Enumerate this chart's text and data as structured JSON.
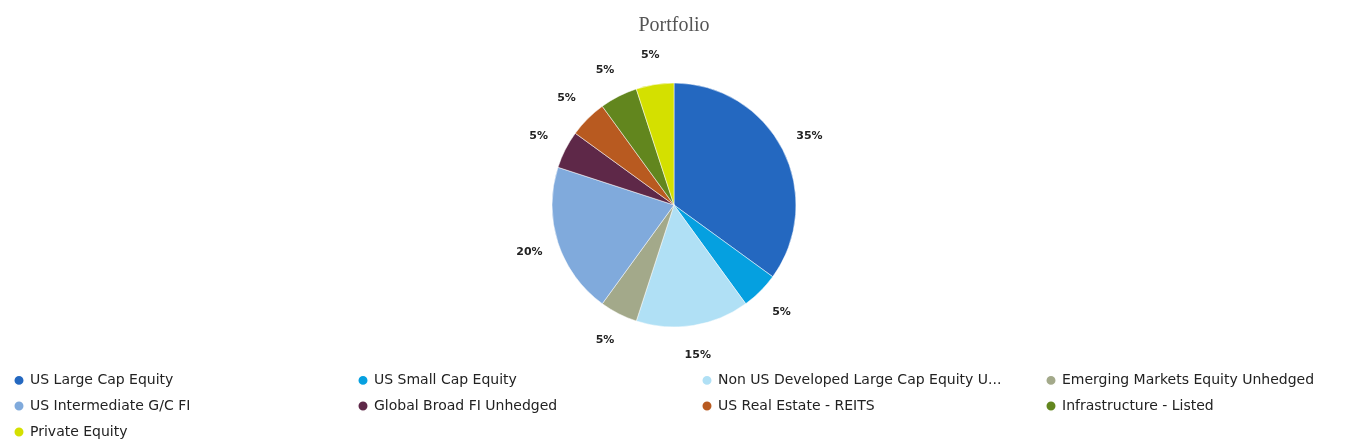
{
  "chart_data": {
    "type": "pie",
    "title": "Portfolio",
    "categories": [
      "US Large Cap Equity",
      "US Small Cap Equity",
      "Non US Developed Large Cap Equity U...",
      "Emerging Markets Equity Unhedged",
      "US Intermediate G/C FI",
      "Global Broad FI Unhedged",
      "US Real Estate - REITS",
      "Infrastructure - Listed",
      "Private Equity"
    ],
    "values": [
      35,
      5,
      15,
      5,
      20,
      5,
      5,
      5,
      5
    ],
    "value_labels": [
      "35%",
      "5%",
      "15%",
      "5%",
      "20%",
      "5%",
      "5%",
      "5%",
      "5%"
    ],
    "colors": [
      "#2468c0",
      "#05a0e0",
      "#b0e0f5",
      "#a3a98a",
      "#80aadc",
      "#5e2848",
      "#b85a20",
      "#62861e",
      "#d4e000"
    ],
    "legend": "bottom"
  }
}
